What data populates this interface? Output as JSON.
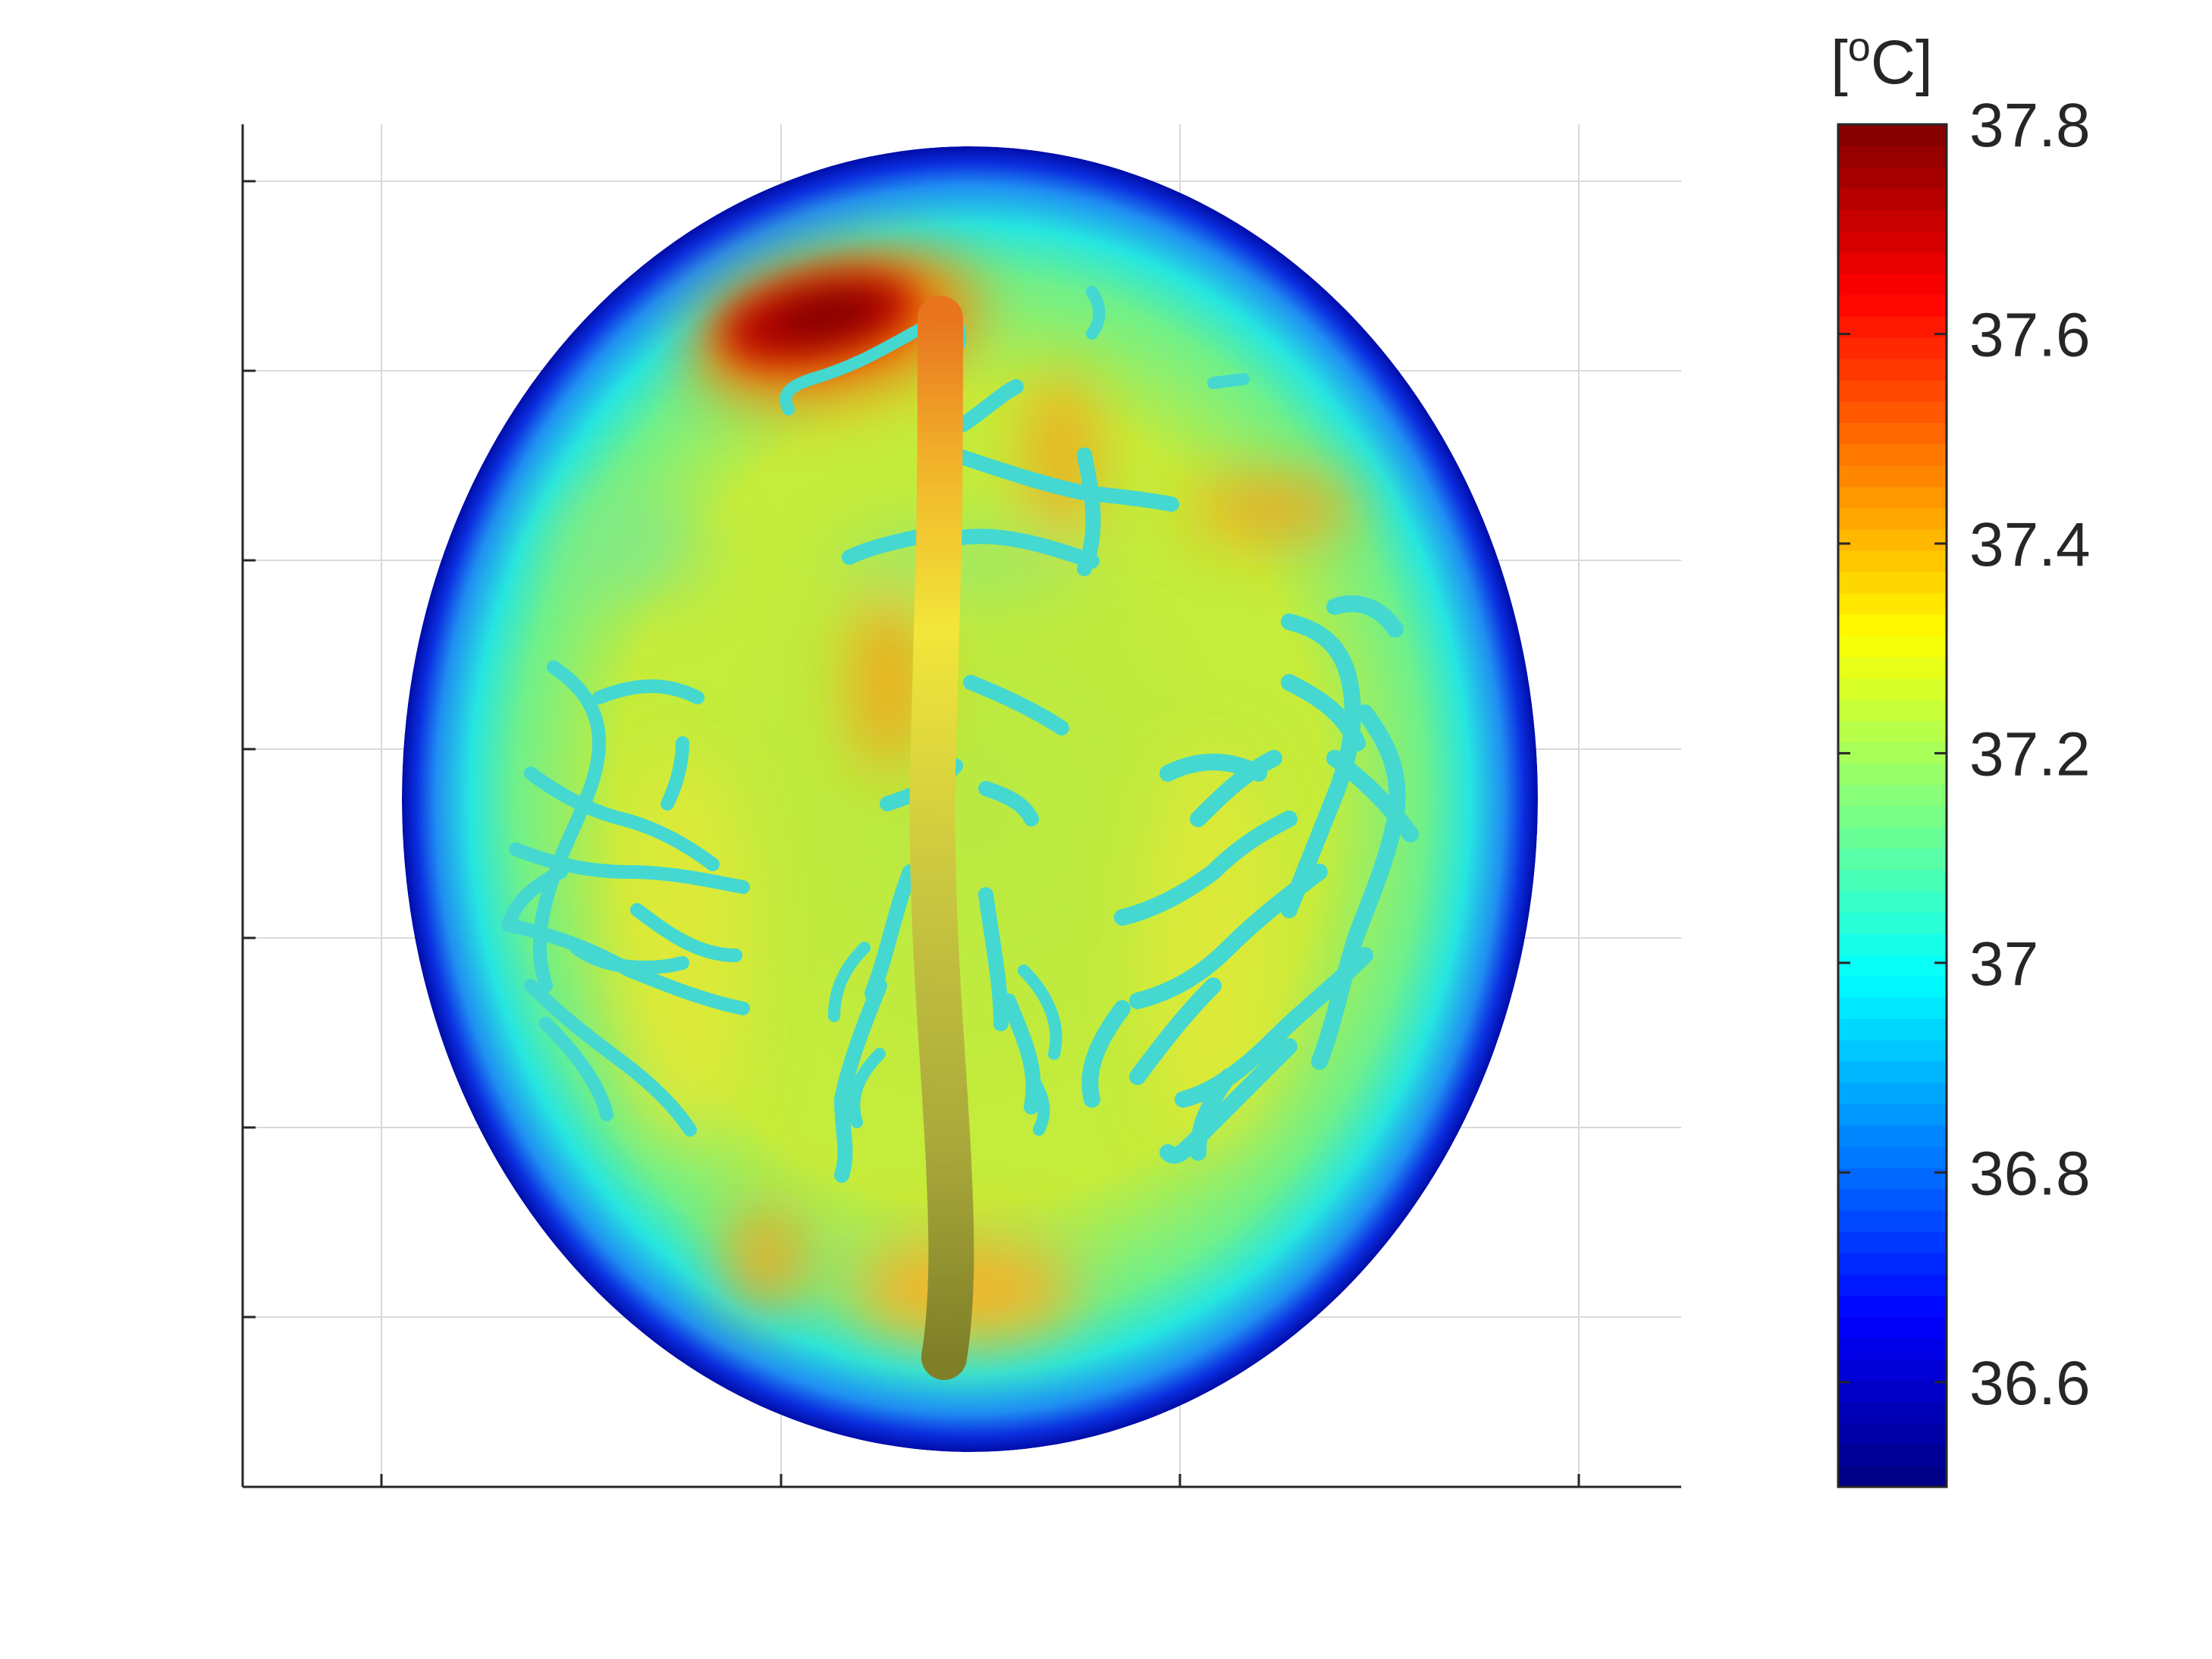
{
  "chart_data": {
    "type": "heatmap",
    "title": "",
    "xlabel": "",
    "ylabel": "",
    "grid": true,
    "colormap": "jet",
    "colorbar": {
      "unit_prefix": "[",
      "unit_superscript": "o",
      "unit_suffix": "C]",
      "range": [
        36.5,
        37.8
      ],
      "ticks": [
        36.6,
        36.8,
        37,
        37.2,
        37.4,
        37.6,
        37.8
      ],
      "tick_labels": [
        "36.6",
        "36.8",
        "37",
        "37.2",
        "37.4",
        "37.6",
        "37.8"
      ],
      "placement": "right"
    },
    "field": {
      "description_values": {
        "boundary": 36.5,
        "background": 37.15
      },
      "hotspots": [
        {
          "name": "frontal-left",
          "value": 37.8
        },
        {
          "name": "frontal-right-strip",
          "value": 37.4
        },
        {
          "name": "lateral-right",
          "value": 37.4
        },
        {
          "name": "central-left",
          "value": 37.35
        },
        {
          "name": "occipital-left",
          "value": 37.35
        },
        {
          "name": "occipital-center",
          "value": 37.35
        }
      ]
    },
    "vessels": {
      "main_trunk_color": "#d6c63a",
      "branch_color": "#3fd6d0",
      "top_hot_color": "#e06b1f"
    }
  }
}
